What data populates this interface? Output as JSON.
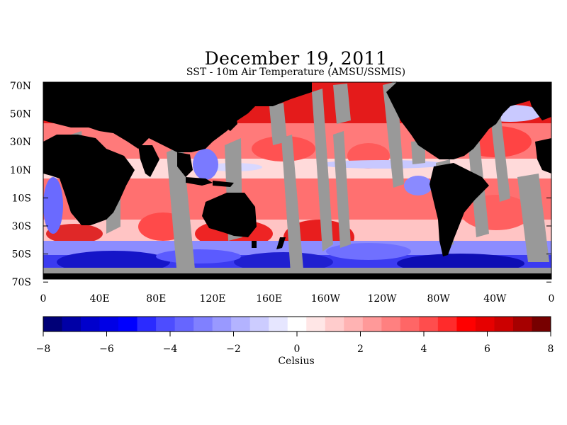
{
  "title": "December 19, 2011",
  "subtitle": "SST - 10m Air Temperature (AMSU/SSMIS)",
  "map": {
    "lat_labels": [
      "70N",
      "50N",
      "30N",
      "10N",
      "10S",
      "30S",
      "50S",
      "70S"
    ],
    "lon_labels": [
      "0",
      "40E",
      "80E",
      "120E",
      "160E",
      "160W",
      "120W",
      "80W",
      "40W",
      "0"
    ],
    "colors": {
      "land": "#000000",
      "missing": "#999999"
    }
  },
  "colorbar": {
    "ticks": [
      "-8",
      "-6",
      "-4",
      "-2",
      "0",
      "2",
      "4",
      "6",
      "8"
    ],
    "label": "Celsius",
    "colors": [
      "#000077",
      "#0000a6",
      "#0000cc",
      "#0000e6",
      "#0000ff",
      "#2b2bff",
      "#4d4dff",
      "#6666ff",
      "#8080ff",
      "#9999ff",
      "#b3b3ff",
      "#ccccff",
      "#e6e6ff",
      "#ffffff",
      "#ffe6e6",
      "#ffcccc",
      "#ffb3b3",
      "#ff9999",
      "#ff8080",
      "#ff6666",
      "#ff4d4d",
      "#ff2b2b",
      "#ff0000",
      "#e60000",
      "#cc0000",
      "#a60000",
      "#770000"
    ]
  }
}
